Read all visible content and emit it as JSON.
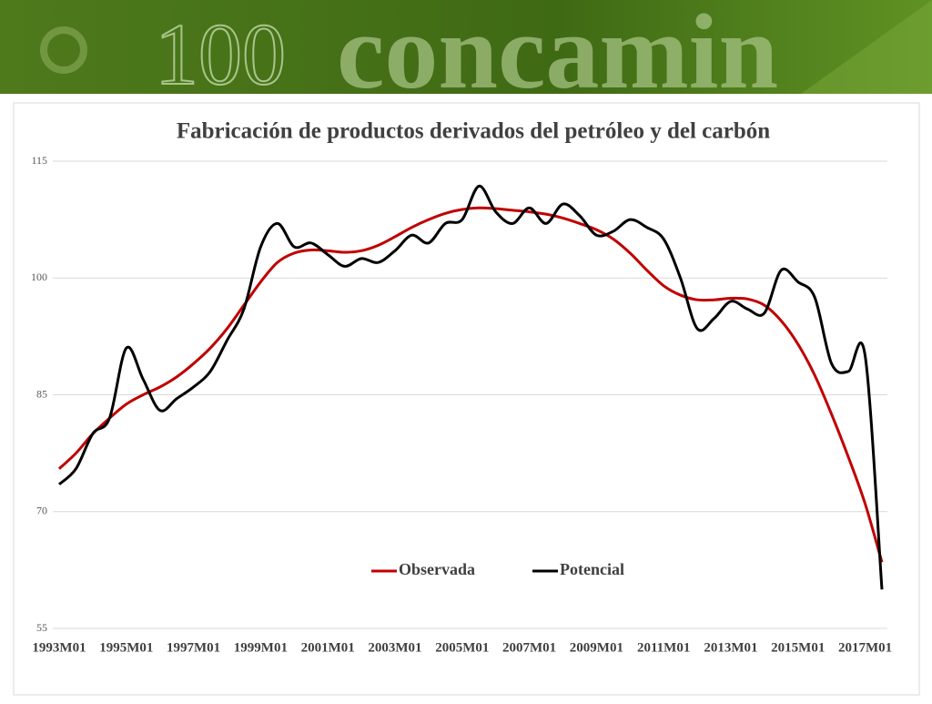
{
  "banner": {
    "anniversary": "100",
    "logo": "concamin"
  },
  "chart_data": {
    "type": "line",
    "title": "Fabricación de productos derivados del petróleo y del carbón",
    "categories": [
      "1993M01",
      null,
      null,
      null,
      "1995M01",
      null,
      null,
      null,
      "1997M01",
      null,
      null,
      null,
      "1999M01",
      null,
      null,
      null,
      "2001M01",
      null,
      null,
      null,
      "2003M01",
      null,
      null,
      null,
      "2005M01",
      null,
      null,
      null,
      "2007M01",
      null,
      null,
      null,
      "2009M01",
      null,
      null,
      null,
      "2011M01",
      null,
      null,
      null,
      "2013M01",
      null,
      null,
      null,
      "2015M01",
      null,
      null,
      null,
      "2017M01",
      null
    ],
    "series": [
      {
        "name": "Observada",
        "color": "#c00000",
        "values": [
          75.5,
          77.5,
          80,
          82,
          83.8,
          85,
          86,
          87.3,
          89,
          91,
          93.5,
          96.5,
          99.5,
          102,
          103.2,
          103.6,
          103.5,
          103.3,
          103.5,
          104.2,
          105.3,
          106.5,
          107.5,
          108.3,
          108.8,
          109,
          108.9,
          108.7,
          108.5,
          108.2,
          107.7,
          107,
          106.2,
          105,
          103.2,
          101,
          99,
          97.8,
          97.2,
          97.2,
          97.4,
          97.3,
          96.5,
          94.5,
          91.5,
          87.5,
          82.5,
          77,
          71,
          63.5
        ]
      },
      {
        "name": "Potencial",
        "color": "#000000",
        "values": [
          73.5,
          75.5,
          80,
          82,
          91,
          87,
          83,
          84.5,
          86,
          88,
          92,
          96,
          104,
          107,
          104,
          104.5,
          103,
          101.5,
          102.5,
          102,
          103.5,
          105.5,
          104.5,
          107,
          107.5,
          111.8,
          108.5,
          107,
          109,
          107,
          109.5,
          108,
          105.5,
          106,
          107.5,
          106.5,
          105,
          100,
          93.5,
          94.8,
          97,
          96,
          95.5,
          101,
          99.5,
          97.5,
          89,
          88,
          90,
          60
        ]
      }
    ],
    "ylim": [
      55,
      115
    ],
    "yticks": [
      55,
      70,
      85,
      100,
      115
    ],
    "grid": true,
    "legend": "bottom"
  }
}
